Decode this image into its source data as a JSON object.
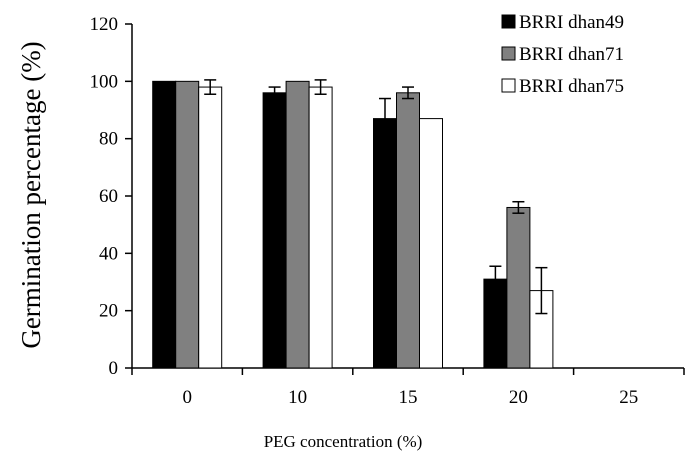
{
  "chart_data": {
    "type": "bar",
    "title": "",
    "xlabel": "PEG concentration (%)",
    "ylabel": "Germination percentage (%)",
    "ylim": [
      0,
      120
    ],
    "yticks": [
      0,
      20,
      40,
      60,
      80,
      100,
      120
    ],
    "categories": [
      "0",
      "10",
      "15",
      "20",
      "25"
    ],
    "series": [
      {
        "name": "BRRI dhan49",
        "fill": "#000000",
        "values": [
          100,
          96,
          87,
          31,
          0
        ],
        "errors": [
          0,
          2,
          7,
          4.5,
          0
        ]
      },
      {
        "name": "BRRI dhan71",
        "fill": "#808080",
        "values": [
          100,
          100,
          96,
          56,
          0
        ],
        "errors": [
          0,
          0,
          2,
          2,
          0
        ]
      },
      {
        "name": "BRRI dhan75",
        "fill": "#ffffff",
        "values": [
          98,
          98,
          87,
          27,
          0
        ],
        "errors": [
          2.5,
          2.5,
          0,
          8,
          0
        ]
      }
    ],
    "legend_position": "top-right",
    "grid": false
  }
}
